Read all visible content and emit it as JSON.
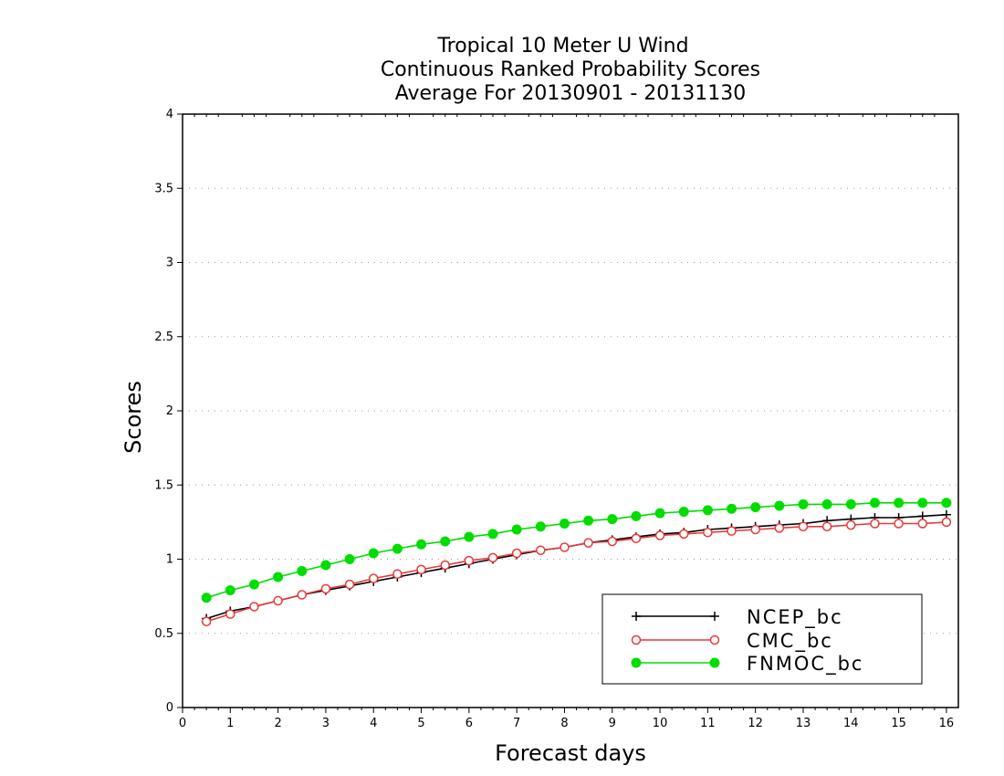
{
  "chart_data": {
    "type": "line",
    "title": [
      "Tropical 10 Meter U Wind",
      "Continuous Ranked Probability Scores",
      "Average For 20130901 - 20131130"
    ],
    "xlabel": "Forecast days",
    "ylabel": "Scores",
    "xlim": [
      0,
      16.25
    ],
    "ylim": [
      0,
      4
    ],
    "xticks": [
      "0",
      "1",
      "2",
      "3",
      "4",
      "5",
      "6",
      "7",
      "8",
      "9",
      "10",
      "11",
      "12",
      "13",
      "14",
      "15",
      "16"
    ],
    "yticks": [
      "0",
      "0.5",
      "1",
      "1.5",
      "2",
      "2.5",
      "3",
      "3.5",
      "4"
    ],
    "grid": "horizontal dotted",
    "legend_position": "bottom-right",
    "x": [
      0.5,
      1,
      1.5,
      2,
      2.5,
      3,
      3.5,
      4,
      4.5,
      5,
      5.5,
      6,
      6.5,
      7,
      7.5,
      8,
      8.5,
      9,
      9.5,
      10,
      10.5,
      11,
      11.5,
      12,
      12.5,
      13,
      13.5,
      14,
      14.5,
      15,
      15.5,
      16
    ],
    "series": [
      {
        "name": "NCEP_bc",
        "color": "#000000",
        "marker": "plus",
        "values": [
          0.6,
          0.65,
          0.68,
          0.72,
          0.76,
          0.79,
          0.82,
          0.85,
          0.88,
          0.91,
          0.94,
          0.97,
          1.0,
          1.03,
          1.06,
          1.08,
          1.11,
          1.13,
          1.15,
          1.17,
          1.18,
          1.2,
          1.21,
          1.22,
          1.23,
          1.24,
          1.26,
          1.27,
          1.28,
          1.28,
          1.29,
          1.3
        ]
      },
      {
        "name": "CMC_bc",
        "color": "#e8393a",
        "marker": "open-circle",
        "values": [
          0.58,
          0.63,
          0.68,
          0.72,
          0.76,
          0.8,
          0.83,
          0.87,
          0.9,
          0.93,
          0.96,
          0.99,
          1.01,
          1.04,
          1.06,
          1.08,
          1.11,
          1.12,
          1.14,
          1.16,
          1.17,
          1.18,
          1.19,
          1.2,
          1.21,
          1.22,
          1.22,
          1.23,
          1.24,
          1.24,
          1.24,
          1.25
        ]
      },
      {
        "name": "FNMOC_bc",
        "color": "#00dd00",
        "marker": "filled-circle",
        "values": [
          0.74,
          0.79,
          0.83,
          0.88,
          0.92,
          0.96,
          1.0,
          1.04,
          1.07,
          1.1,
          1.12,
          1.15,
          1.17,
          1.2,
          1.22,
          1.24,
          1.26,
          1.27,
          1.29,
          1.31,
          1.32,
          1.33,
          1.34,
          1.35,
          1.36,
          1.37,
          1.37,
          1.37,
          1.38,
          1.38,
          1.38,
          1.38
        ]
      }
    ]
  }
}
